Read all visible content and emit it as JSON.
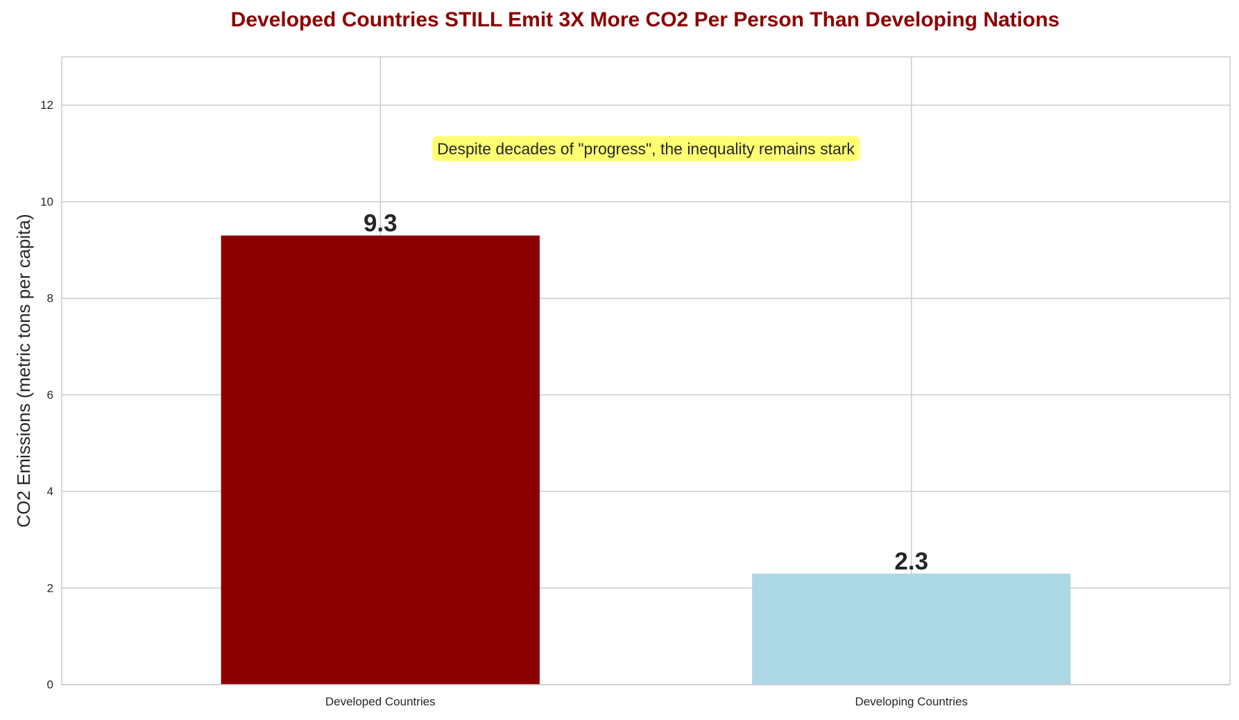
{
  "chart_data": {
    "type": "bar",
    "title": "Developed Countries STILL Emit 3X More CO2 Per Person Than Developing Nations",
    "xlabel": "",
    "ylabel": "CO2 Emissions (metric tons per capita)",
    "categories": [
      "Developed Countries",
      "Developing Countries"
    ],
    "values": [
      9.3,
      2.3
    ],
    "data_labels": [
      "9.3",
      "2.3"
    ],
    "ylim": [
      0,
      13
    ],
    "yticks": [
      0,
      2,
      4,
      6,
      8,
      10,
      12
    ],
    "ytick_labels": [
      "0",
      "2",
      "4",
      "6",
      "8",
      "10",
      "12"
    ],
    "grid": true,
    "legend": "none",
    "annotation": {
      "text": "Despite decades of \"progress\", the inequality remains stark",
      "x_category_position": 0.5,
      "y_value": 11.1
    }
  },
  "colors": {
    "title": "#8b0000",
    "bars": [
      "#8b0000",
      "#add8e6"
    ],
    "annotation_background": "#ffff44",
    "grid": "#cccccc",
    "axes_frame": "#cccccc",
    "text": "#262626"
  }
}
